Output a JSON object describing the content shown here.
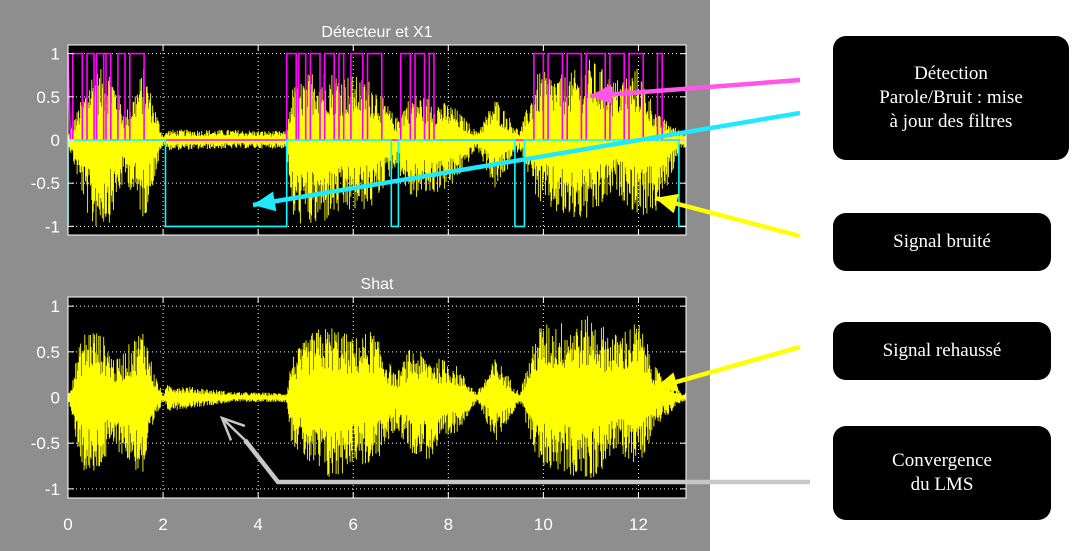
{
  "figure": {
    "background": "#8e8e8e",
    "axes_background": "#000000"
  },
  "chart_data": [
    {
      "type": "line",
      "title": "Détecteur et X1",
      "xlabel": "",
      "ylabel": "",
      "xlim": [
        0,
        13
      ],
      "ylim": [
        -1.1,
        1.1
      ],
      "x_ticks": [
        "0",
        "2",
        "4",
        "6",
        "8",
        "10",
        "12"
      ],
      "y_ticks": [
        "1",
        "0.5",
        "0",
        "-0.5",
        "-1"
      ],
      "grid": true,
      "series": [
        {
          "role": "noisy-signal",
          "color": "#ffff00",
          "envelope": {
            "t": [
              0,
              0.5,
              0.9,
              1.2,
              1.6,
              2.0,
              2.1,
              3.5,
              4.6,
              4.7,
              5.2,
              5.6,
              6.4,
              6.9,
              7.2,
              7.6,
              8.1,
              8.6,
              9.0,
              9.5,
              9.9,
              10.5,
              11.0,
              11.5,
              12.0,
              12.4,
              12.9,
              13.0
            ],
            "pos": [
              0.05,
              0.8,
              0.85,
              0.3,
              0.85,
              0.05,
              0.12,
              0.12,
              0.1,
              0.6,
              0.85,
              0.8,
              0.7,
              0.25,
              0.55,
              0.5,
              0.4,
              0.1,
              0.5,
              0.1,
              0.8,
              0.75,
              0.95,
              0.7,
              0.85,
              0.3,
              0.1,
              0.1
            ],
            "neg": [
              0.05,
              1.05,
              0.95,
              0.45,
              0.95,
              0.05,
              0.12,
              0.1,
              0.1,
              0.95,
              1.05,
              0.9,
              0.8,
              0.3,
              0.7,
              0.65,
              0.55,
              0.1,
              0.6,
              0.1,
              0.75,
              0.95,
              0.95,
              0.6,
              0.9,
              0.85,
              0.1,
              0.1
            ]
          }
        },
        {
          "role": "detector-magenta",
          "color": "#ff00ff",
          "mode": "steps",
          "points": [
            [
              0,
              1
            ],
            [
              0.05,
              0
            ],
            [
              0.1,
              0
            ],
            [
              0.1,
              1
            ],
            [
              0.3,
              1
            ],
            [
              0.3,
              0
            ],
            [
              0.4,
              0
            ],
            [
              0.4,
              1
            ],
            [
              0.55,
              1
            ],
            [
              0.55,
              0
            ],
            [
              0.6,
              0
            ],
            [
              0.6,
              1
            ],
            [
              0.75,
              1
            ],
            [
              0.75,
              0
            ],
            [
              0.8,
              0
            ],
            [
              0.8,
              1
            ],
            [
              0.9,
              1
            ],
            [
              0.9,
              0
            ],
            [
              1.05,
              0
            ],
            [
              1.05,
              1
            ],
            [
              1.2,
              1
            ],
            [
              1.2,
              0
            ],
            [
              1.3,
              0
            ],
            [
              1.3,
              1
            ],
            [
              1.6,
              1
            ],
            [
              1.6,
              0
            ],
            [
              4.6,
              0
            ],
            [
              4.6,
              1
            ],
            [
              4.8,
              1
            ],
            [
              4.8,
              0
            ],
            [
              4.85,
              0
            ],
            [
              4.85,
              1
            ],
            [
              5.0,
              1
            ],
            [
              5.0,
              0
            ],
            [
              5.1,
              0
            ],
            [
              5.1,
              1
            ],
            [
              5.3,
              1
            ],
            [
              5.3,
              0
            ],
            [
              5.4,
              0
            ],
            [
              5.4,
              1
            ],
            [
              5.6,
              1
            ],
            [
              5.6,
              0
            ],
            [
              5.7,
              0
            ],
            [
              5.7,
              1
            ],
            [
              5.8,
              1
            ],
            [
              5.8,
              0
            ],
            [
              5.95,
              0
            ],
            [
              5.95,
              1
            ],
            [
              6.2,
              1
            ],
            [
              6.2,
              0
            ],
            [
              6.3,
              0
            ],
            [
              6.3,
              1
            ],
            [
              6.6,
              1
            ],
            [
              6.6,
              0
            ],
            [
              7.0,
              0
            ],
            [
              7.0,
              1
            ],
            [
              7.2,
              1
            ],
            [
              7.2,
              0
            ],
            [
              7.3,
              0
            ],
            [
              7.3,
              1
            ],
            [
              7.5,
              1
            ],
            [
              7.5,
              0
            ],
            [
              7.6,
              0
            ],
            [
              7.6,
              1
            ],
            [
              7.7,
              1
            ],
            [
              7.7,
              0
            ],
            [
              9.8,
              0
            ],
            [
              9.8,
              1
            ],
            [
              10.0,
              1
            ],
            [
              10.0,
              0
            ],
            [
              10.1,
              0
            ],
            [
              10.1,
              1
            ],
            [
              10.4,
              1
            ],
            [
              10.4,
              0
            ],
            [
              10.5,
              0
            ],
            [
              10.5,
              1
            ],
            [
              10.8,
              1
            ],
            [
              10.8,
              0
            ],
            [
              10.9,
              0
            ],
            [
              10.9,
              1
            ],
            [
              11.3,
              1
            ],
            [
              11.3,
              0
            ],
            [
              11.4,
              0
            ],
            [
              11.4,
              1
            ],
            [
              11.7,
              1
            ],
            [
              11.7,
              0
            ],
            [
              11.8,
              0
            ],
            [
              11.8,
              1
            ],
            [
              12.1,
              1
            ],
            [
              12.1,
              0
            ],
            [
              12.4,
              0
            ],
            [
              12.4,
              1
            ],
            [
              12.5,
              1
            ],
            [
              12.5,
              0
            ],
            [
              13.0,
              0
            ]
          ]
        },
        {
          "role": "detector-cyan",
          "color": "#00ffff",
          "mode": "steps",
          "points": [
            [
              0,
              -1
            ],
            [
              0,
              0
            ],
            [
              2.05,
              0
            ],
            [
              2.05,
              -1
            ],
            [
              4.6,
              -1
            ],
            [
              4.6,
              0
            ],
            [
              6.8,
              0
            ],
            [
              6.8,
              -1
            ],
            [
              6.95,
              -1
            ],
            [
              6.95,
              0
            ],
            [
              9.4,
              0
            ],
            [
              9.4,
              -1
            ],
            [
              9.6,
              -1
            ],
            [
              9.6,
              0
            ],
            [
              12.85,
              0
            ],
            [
              12.85,
              -1
            ],
            [
              13.0,
              -1
            ]
          ]
        }
      ]
    },
    {
      "type": "line",
      "title": "Shat",
      "xlabel": "",
      "ylabel": "",
      "xlim": [
        0,
        13
      ],
      "ylim": [
        -1.1,
        1.1
      ],
      "x_ticks": [
        "0",
        "2",
        "4",
        "6",
        "8",
        "10",
        "12"
      ],
      "y_ticks": [
        "1",
        "0.5",
        "0",
        "-0.5",
        "-1"
      ],
      "grid": true,
      "series": [
        {
          "role": "enhanced-signal",
          "color": "#ffff00",
          "envelope": {
            "t": [
              0,
              0.3,
              0.5,
              0.8,
              1.0,
              1.3,
              1.6,
              1.8,
              2.0,
              2.1,
              3.5,
              4.6,
              4.7,
              5.2,
              5.6,
              6.0,
              6.4,
              6.9,
              7.2,
              7.6,
              8.1,
              8.6,
              9.0,
              9.5,
              9.9,
              10.5,
              11.0,
              11.5,
              12.0,
              12.4,
              12.9,
              13.0
            ],
            "pos": [
              0.03,
              0.7,
              0.8,
              0.65,
              0.4,
              0.6,
              0.8,
              0.3,
              0.03,
              0.15,
              0.06,
              0.05,
              0.45,
              0.75,
              0.8,
              0.65,
              0.75,
              0.25,
              0.55,
              0.45,
              0.4,
              0.05,
              0.45,
              0.05,
              0.8,
              0.85,
              0.9,
              0.7,
              0.85,
              0.3,
              0.05,
              0.05
            ],
            "neg": [
              0.03,
              0.8,
              0.95,
              0.7,
              0.55,
              0.75,
              0.9,
              0.35,
              0.03,
              0.15,
              0.05,
              0.05,
              0.5,
              0.85,
              0.95,
              0.7,
              0.8,
              0.35,
              0.6,
              0.7,
              0.45,
              0.05,
              0.5,
              0.05,
              0.75,
              0.85,
              0.95,
              0.6,
              0.75,
              0.3,
              0.05,
              0.05
            ]
          }
        }
      ]
    }
  ],
  "annotations": [
    {
      "name": "detection-callout",
      "lines": [
        "Détection",
        "Parole/Bruit : mise",
        "à jour des filtres"
      ]
    },
    {
      "name": "noisy-signal-callout",
      "lines": [
        "Signal bruité"
      ]
    },
    {
      "name": "enhanced-signal-callout",
      "lines": [
        "Signal rehaussé"
      ]
    },
    {
      "name": "lms-convergence-callout",
      "lines": [
        "Convergence",
        "du LMS"
      ]
    }
  ],
  "arrow_colors": {
    "magenta": "#ff55e8",
    "cyan": "#20e8ff",
    "yellow": "#ffff00",
    "gray": "#c8c8c8"
  }
}
